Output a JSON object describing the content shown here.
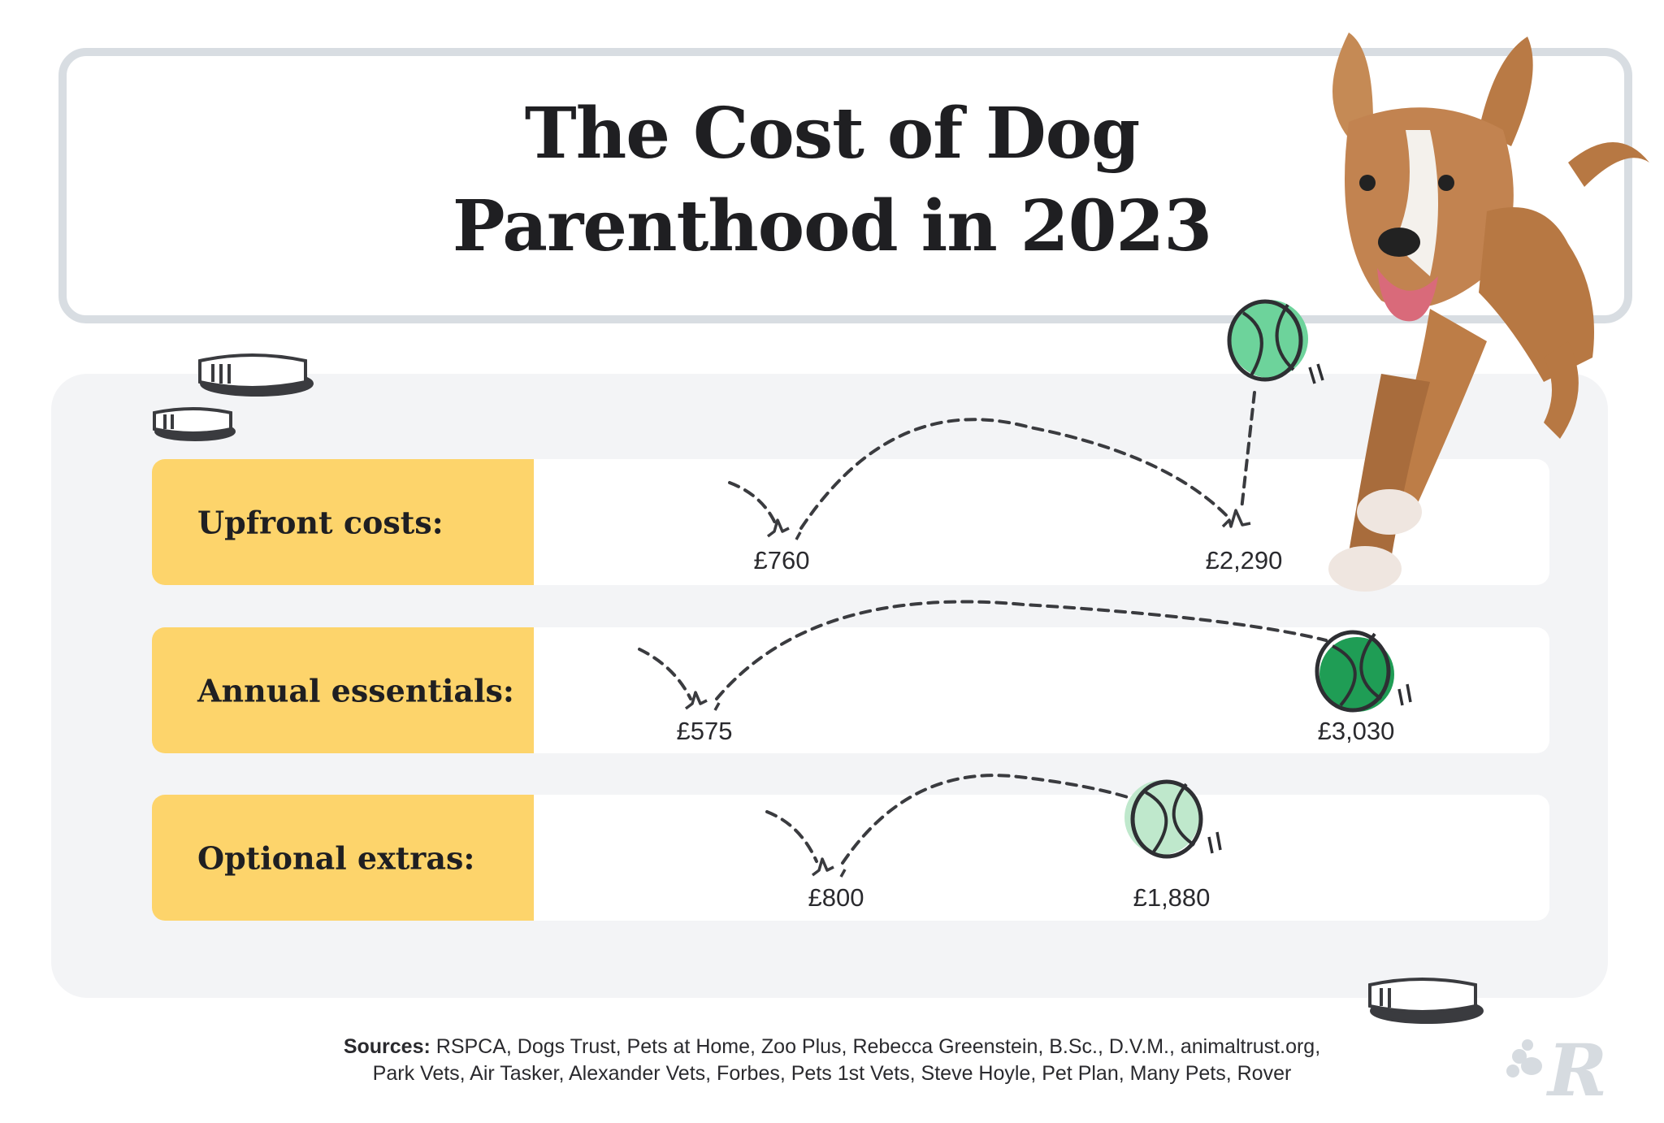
{
  "title": {
    "line1": "The Cost of Dog",
    "line2": "Parenthood in 2023"
  },
  "rows": [
    {
      "label": "Upfront costs:",
      "low": "£760",
      "high": "£2,290",
      "ball_color": "#6dd39b"
    },
    {
      "label": "Annual essentials:",
      "low": "£575",
      "high": "£3,030",
      "ball_color": "#1f9d55"
    },
    {
      "label": "Optional extras:",
      "low": "£800",
      "high": "£1,880",
      "ball_color": "#bfe8cc"
    }
  ],
  "sources": {
    "label": "Sources:",
    "line1": "RSPCA, Dogs Trust, Pets at Home, Zoo Plus, Rebecca Greenstein, B.Sc., D.V.M., animaltrust.org,",
    "line2": "Park Vets, Air Tasker, Alexander Vets, Forbes, Pets 1st Vets, Steve Hoyle, Pet Plan, Many Pets, Rover"
  },
  "logo": "R",
  "colors": {
    "label_bg": "#fdd46b",
    "panel_bg": "#f3f4f6",
    "border": "#d8dde2"
  }
}
